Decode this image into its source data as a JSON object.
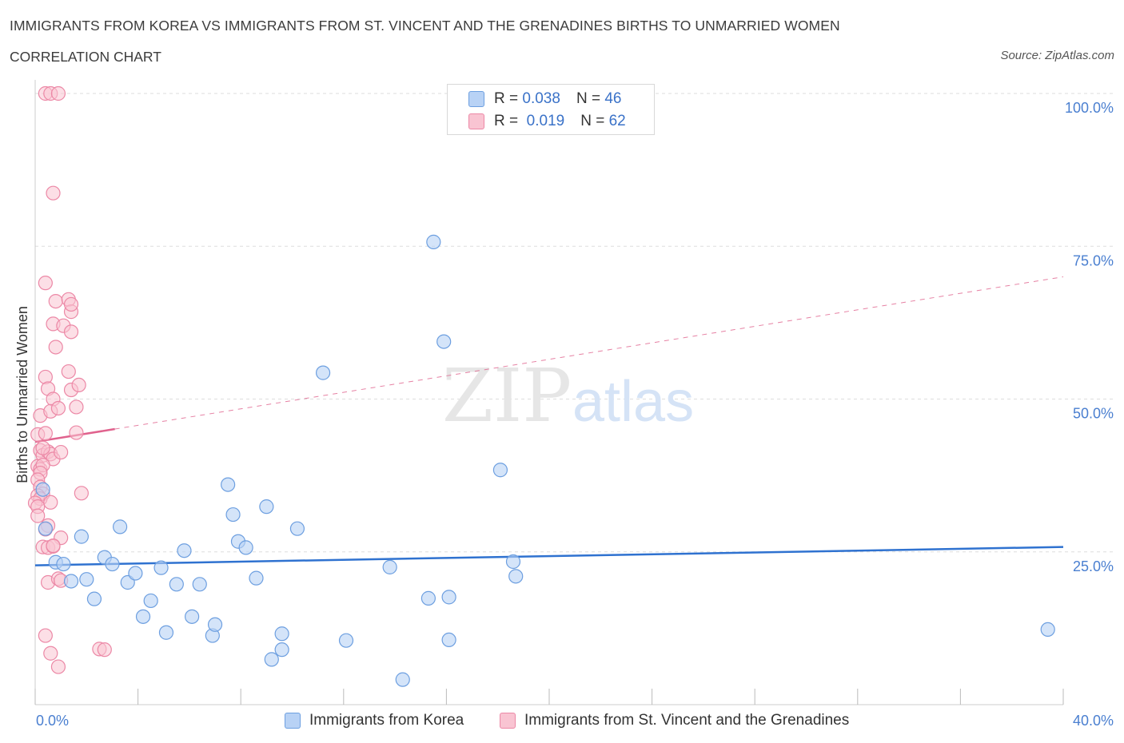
{
  "header": {
    "title": "IMMIGRANTS FROM KOREA VS IMMIGRANTS FROM ST. VINCENT AND THE GRENADINES BIRTHS TO UNMARRIED WOMEN",
    "subtitle": "CORRELATION CHART",
    "source": "Source: ZipAtlas.com"
  },
  "legend": {
    "korea": {
      "r_label": "R =",
      "r_value": "0.038",
      "n_label": "N =",
      "n_value": "46"
    },
    "svg": {
      "r_label": "R =",
      "r_value": "0.019",
      "n_label": "N =",
      "n_value": "62"
    }
  },
  "bottom_legend": {
    "korea": "Immigrants from Korea",
    "svg": "Immigrants from St. Vincent and the Grenadines"
  },
  "colors": {
    "korea_fill": "#b8d2f5",
    "korea_stroke": "#6d9fe0",
    "korea_line": "#2f72d0",
    "svg_fill": "#f9c4d2",
    "svg_stroke": "#ec88a6",
    "svg_line": "#e0628d",
    "axis_text": "#4a7fd0",
    "grid": "#dddddd"
  },
  "chart_data": {
    "type": "scatter",
    "xlabel": "",
    "ylabel": "Births to Unmarried Women",
    "xlim": [
      0,
      40
    ],
    "ylim": [
      0,
      100
    ],
    "x_tick_labels": [
      "0.0%",
      "40.0%"
    ],
    "y_tick_labels": [
      "25.0%",
      "50.0%",
      "75.0%",
      "100.0%"
    ],
    "y_ticks": [
      25,
      50,
      75,
      100
    ],
    "grid": true,
    "watermark": "ZIPatlas",
    "series": [
      {
        "name": "Immigrants from Korea",
        "r": 0.038,
        "n": 46,
        "trend": {
          "x": [
            0,
            40
          ],
          "y": [
            22.8,
            25.8
          ],
          "dashed_from": null
        },
        "points": [
          [
            0.3,
            35.2
          ],
          [
            0.4,
            28.8
          ],
          [
            0.8,
            23.3
          ],
          [
            1.1,
            23.0
          ],
          [
            1.4,
            20.2
          ],
          [
            1.8,
            27.5
          ],
          [
            2.0,
            20.5
          ],
          [
            2.3,
            17.3
          ],
          [
            2.7,
            24.1
          ],
          [
            3.0,
            23.0
          ],
          [
            3.3,
            29.1
          ],
          [
            3.6,
            20.0
          ],
          [
            3.9,
            21.5
          ],
          [
            4.2,
            14.4
          ],
          [
            4.5,
            17.0
          ],
          [
            4.9,
            22.4
          ],
          [
            5.1,
            11.8
          ],
          [
            5.5,
            19.7
          ],
          [
            5.8,
            25.2
          ],
          [
            6.1,
            14.4
          ],
          [
            6.4,
            19.7
          ],
          [
            6.9,
            11.3
          ],
          [
            7.0,
            13.1
          ],
          [
            7.5,
            36.0
          ],
          [
            7.7,
            31.1
          ],
          [
            7.9,
            26.7
          ],
          [
            8.2,
            25.7
          ],
          [
            8.6,
            20.7
          ],
          [
            9.2,
            7.4
          ],
          [
            9.0,
            32.4
          ],
          [
            9.6,
            11.6
          ],
          [
            9.6,
            9.0
          ],
          [
            10.2,
            28.8
          ],
          [
            11.2,
            54.3
          ],
          [
            12.1,
            10.5
          ],
          [
            13.8,
            22.5
          ],
          [
            14.3,
            4.1
          ],
          [
            15.3,
            17.4
          ],
          [
            15.5,
            75.7
          ],
          [
            15.9,
            59.4
          ],
          [
            16.1,
            17.6
          ],
          [
            16.1,
            10.6
          ],
          [
            18.1,
            38.4
          ],
          [
            18.6,
            23.4
          ],
          [
            18.7,
            21.0
          ],
          [
            39.4,
            12.3
          ]
        ]
      },
      {
        "name": "Immigrants from St. Vincent and the Grenadines",
        "r": 0.019,
        "n": 62,
        "trend": {
          "x": [
            0,
            40
          ],
          "y": [
            43.0,
            70.0
          ],
          "solid_to": 3.1
        },
        "points": [
          [
            0.4,
            100
          ],
          [
            0.6,
            100
          ],
          [
            0.9,
            100
          ],
          [
            0.7,
            83.7
          ],
          [
            0.4,
            69.0
          ],
          [
            0.8,
            66.0
          ],
          [
            1.3,
            66.3
          ],
          [
            1.4,
            64.3
          ],
          [
            1.4,
            65.5
          ],
          [
            0.7,
            62.3
          ],
          [
            1.1,
            62.0
          ],
          [
            1.4,
            61.0
          ],
          [
            0.8,
            58.5
          ],
          [
            0.4,
            53.6
          ],
          [
            1.3,
            54.5
          ],
          [
            0.5,
            51.7
          ],
          [
            1.4,
            51.5
          ],
          [
            1.7,
            52.3
          ],
          [
            0.7,
            50.0
          ],
          [
            0.2,
            47.3
          ],
          [
            0.6,
            48.0
          ],
          [
            0.9,
            48.5
          ],
          [
            1.6,
            48.7
          ],
          [
            0.1,
            44.2
          ],
          [
            0.4,
            44.4
          ],
          [
            1.6,
            44.5
          ],
          [
            0.2,
            41.6
          ],
          [
            0.3,
            40.8
          ],
          [
            0.5,
            41.4
          ],
          [
            0.6,
            41.0
          ],
          [
            0.7,
            40.2
          ],
          [
            1.0,
            41.3
          ],
          [
            0.1,
            39.0
          ],
          [
            0.2,
            38.5
          ],
          [
            0.3,
            39.2
          ],
          [
            0.2,
            37.9
          ],
          [
            0.1,
            36.8
          ],
          [
            0.2,
            35.6
          ],
          [
            0.3,
            34.5
          ],
          [
            0.1,
            34.2
          ],
          [
            0.2,
            33.7
          ],
          [
            0.0,
            33.0
          ],
          [
            0.1,
            32.4
          ],
          [
            0.6,
            33.1
          ],
          [
            1.8,
            34.6
          ],
          [
            0.1,
            30.9
          ],
          [
            0.5,
            29.3
          ],
          [
            0.4,
            28.7
          ],
          [
            1.0,
            27.3
          ],
          [
            0.3,
            25.8
          ],
          [
            0.5,
            25.7
          ],
          [
            0.7,
            25.9
          ],
          [
            0.5,
            20.0
          ],
          [
            0.9,
            20.6
          ],
          [
            1.0,
            20.3
          ],
          [
            0.4,
            11.3
          ],
          [
            0.6,
            8.4
          ],
          [
            0.9,
            6.2
          ],
          [
            2.5,
            9.1
          ],
          [
            2.7,
            9.0
          ],
          [
            0.7,
            26.0
          ],
          [
            0.3,
            42.0
          ]
        ]
      }
    ]
  }
}
